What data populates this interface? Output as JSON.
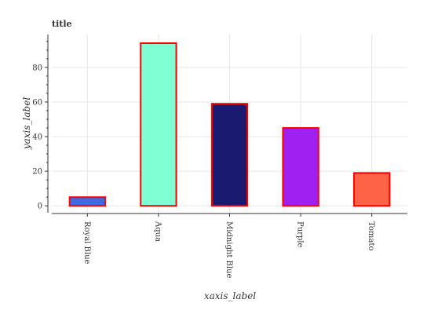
{
  "chart_data": {
    "type": "bar",
    "title": "title",
    "xlabel": "xaxis_label",
    "ylabel": "yaxis_label",
    "categories": [
      "Royal Blue",
      "Aqua",
      "Midnight Blue",
      "Purple",
      "Tomato"
    ],
    "values": [
      5,
      94,
      59,
      45,
      19
    ],
    "colors": [
      "#4169e1",
      "#7fffd4",
      "#191970",
      "#a020f0",
      "#ff6347"
    ],
    "edge_color": "#ff0000",
    "ylim": [
      -4,
      99
    ],
    "yticks": [
      0,
      20,
      40,
      60,
      80
    ],
    "minor_tick_step": 5,
    "grid": true
  }
}
